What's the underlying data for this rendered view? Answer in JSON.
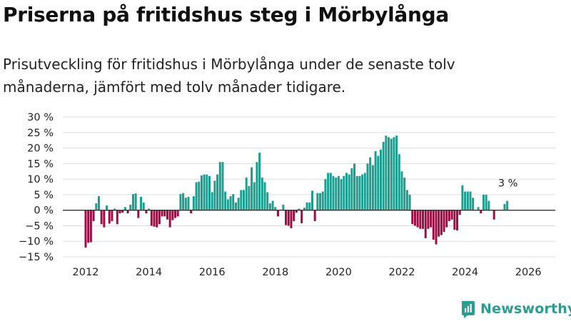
{
  "title": "Priserna på fritidshus steg i Mörbylånga",
  "subtitle": "Prisutveckling för fritidshus i Mörbylånga under de senaste tolv månaderna, jämfört med tolv månader tidigare.",
  "brand": "Newsworthy",
  "colors": {
    "positive": "#1a9e8f",
    "negative": "#9c0d44",
    "grid": "#dddddd",
    "zero": "#333333",
    "brand": "#2a9d8f"
  },
  "chart_data": {
    "type": "bar",
    "title": "Priserna på fritidshus steg i Mörbylånga",
    "xlabel": "",
    "ylabel": "",
    "ylim": [
      -15,
      30
    ],
    "yticks": [
      30,
      25,
      20,
      15,
      10,
      5,
      0,
      -5,
      -10,
      -15
    ],
    "ytick_labels": [
      "30 %",
      "25 %",
      "20 %",
      "15 %",
      "10 %",
      "5 %",
      "0 %",
      "−5 %",
      "−10 %",
      "−15 %"
    ],
    "xticks": [
      2012,
      2014,
      2016,
      2018,
      2020,
      2022,
      2024,
      2026
    ],
    "xtick_labels": [
      "2012",
      "2014",
      "2016",
      "2018",
      "2020",
      "2022",
      "2024",
      "2026"
    ],
    "start": 2012.0,
    "step_years": 0.0833333,
    "annotation": "3 %",
    "values": [
      -12,
      -10.5,
      -10.3,
      -3.5,
      2.2,
      4.5,
      -4.5,
      -5.5,
      1.5,
      -4.3,
      -3.5,
      0.5,
      -4.5,
      -1,
      -0.8,
      1,
      -1,
      1.8,
      5.2,
      5.4,
      -2.5,
      4.3,
      2.5,
      -1,
      0.5,
      -5,
      -5.3,
      -5.5,
      -4.5,
      -2,
      -2,
      -3,
      -5.5,
      -3.2,
      -2.5,
      -2,
      5.2,
      5.5,
      4,
      4.3,
      -1,
      4.5,
      9,
      9.2,
      11.2,
      11.5,
      11.5,
      11,
      5.8,
      9.5,
      11.5,
      15.5,
      15.5,
      6,
      3.5,
      4.5,
      5.2,
      2.5,
      4,
      6.5,
      6.5,
      10.5,
      7.8,
      13.8,
      9,
      15.5,
      18.5,
      10.5,
      9,
      5.8,
      2.2,
      3,
      1,
      -2,
      0.2,
      1.8,
      -4.8,
      -5,
      -5.8,
      -3.5,
      -0.8,
      0.5,
      -4.2,
      0.8,
      2.5,
      2.5,
      6.3,
      -3.5,
      5.5,
      5.5,
      6,
      10,
      12,
      12,
      11,
      10.5,
      11,
      10,
      11,
      12,
      11.5,
      13.5,
      15,
      11,
      11,
      11.5,
      12,
      15,
      17,
      14.5,
      19,
      17.5,
      19.5,
      22,
      24,
      23.5,
      23,
      23.5,
      24,
      18,
      12.5,
      10.5,
      6.5,
      5,
      -4.5,
      -5,
      -5.5,
      -6,
      -6,
      -9,
      -6,
      -5.5,
      -9.5,
      -11,
      -8.5,
      -8,
      -7,
      -5.5,
      -3.5,
      -3,
      -6.3,
      -6.5,
      -1.5,
      8,
      6,
      6,
      6,
      4,
      0,
      1,
      -1,
      5,
      5,
      3,
      0,
      -3,
      0,
      0,
      0,
      2,
      3
    ]
  }
}
